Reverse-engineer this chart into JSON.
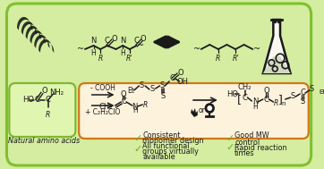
{
  "bg_outer": "#d4eda0",
  "outer_border_color": "#80c030",
  "orange_border_color": "#d07818",
  "green_border_color": "#80b830",
  "check_color": "#70b020",
  "text_color": "#1a1a1a",
  "bullets_left_1": "Consistent",
  "bullets_left_2": "monomer design",
  "bullets_left_3": "All functional",
  "bullets_left_4": "groups virtually",
  "bullets_left_5": "available",
  "bullets_right_1": "Good MW",
  "bullets_right_2": "control",
  "bullets_right_3": "Rapid reaction",
  "bullets_right_4": "times",
  "label_amino": "Natural amino acids",
  "figsize": [
    3.62,
    1.89
  ],
  "dpi": 100
}
